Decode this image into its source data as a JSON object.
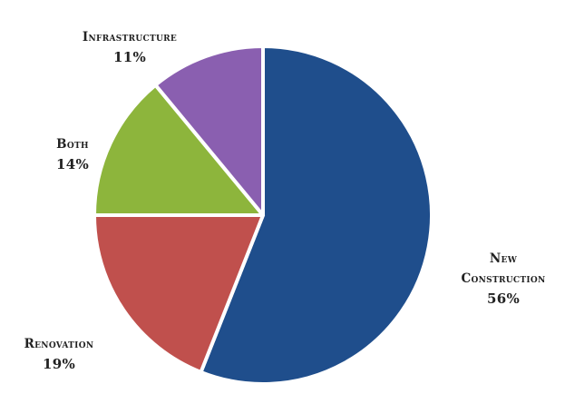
{
  "chart_data": {
    "type": "pie",
    "title": "",
    "start_angle_deg": 0,
    "direction": "clockwise",
    "slices": [
      {
        "label": "New\nConstruction",
        "value": 56,
        "value_label": "56%",
        "color": "#1f4e8c"
      },
      {
        "label": "Renovation",
        "value": 19,
        "value_label": "19%",
        "color": "#c0504d"
      },
      {
        "label": "Both",
        "value": 14,
        "value_label": "14%",
        "color": "#8db53c"
      },
      {
        "label": "Infrastructure",
        "value": 11,
        "value_label": "11%",
        "color": "#8a5fb0"
      }
    ]
  }
}
